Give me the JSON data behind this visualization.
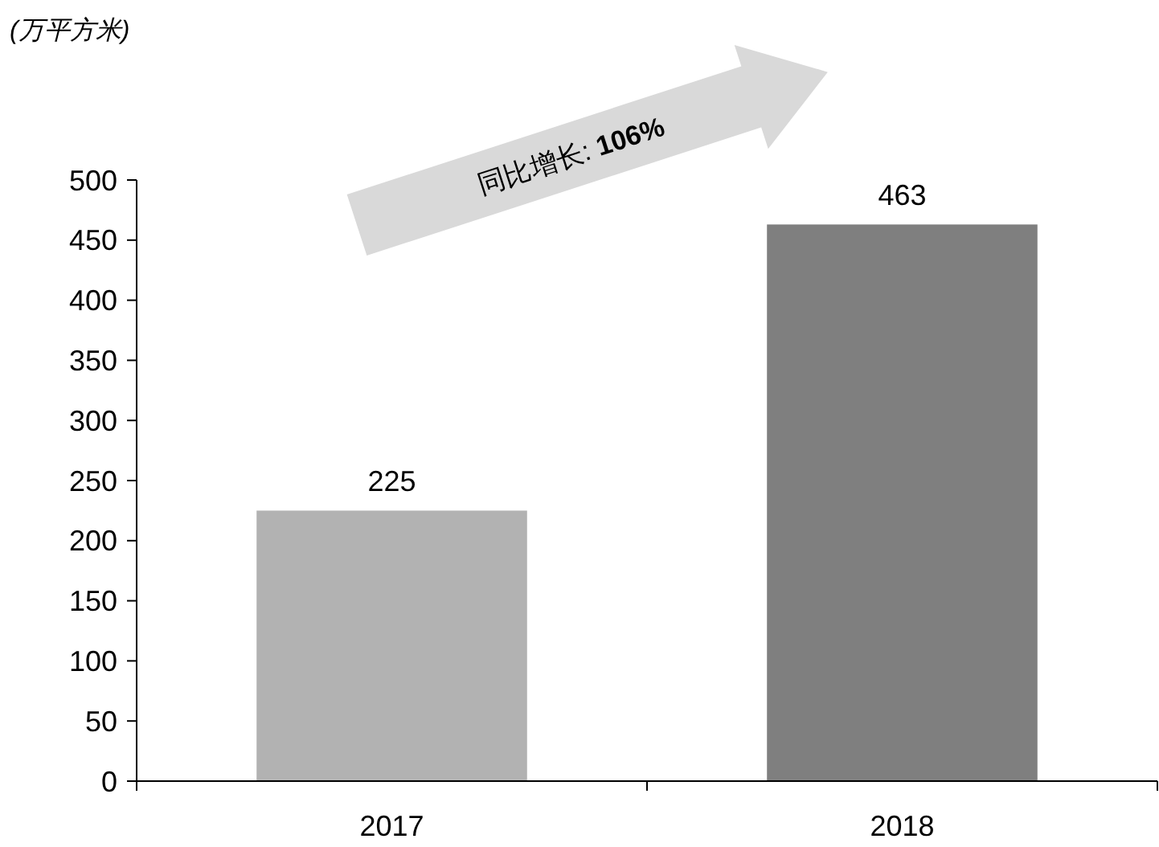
{
  "chart_data": {
    "type": "bar",
    "ylabel": "(万平方米)",
    "categories": [
      "2017",
      "2018"
    ],
    "series": [
      {
        "colors": [
          "#b2b2b2",
          "#7f7f7f"
        ],
        "values": [
          225,
          463
        ]
      }
    ],
    "ylim": [
      0,
      500
    ],
    "yticks": [
      0,
      50,
      100,
      150,
      200,
      250,
      300,
      350,
      400,
      450,
      500
    ],
    "data_labels": true,
    "annotations": [
      "同比增长: 106%"
    ]
  }
}
